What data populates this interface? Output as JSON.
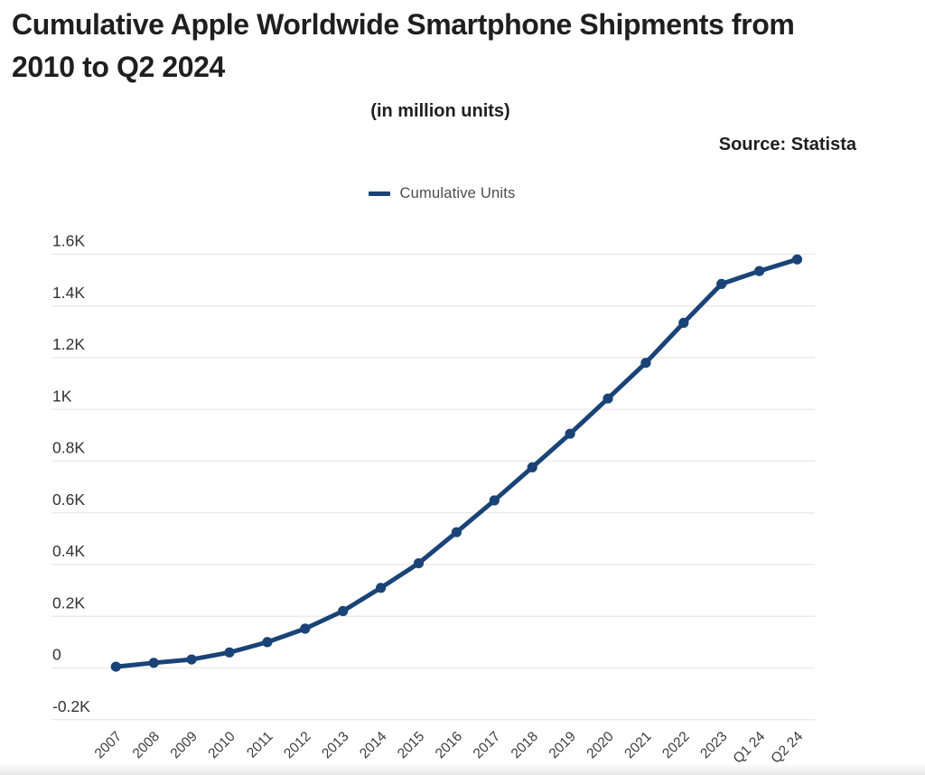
{
  "header": {
    "title_lines": [
      "Cumulative Apple Worldwide Smartphone Shipments from",
      "2010 to Q2 2024"
    ],
    "subtitle": "(in million units)",
    "source": "Source: Statista"
  },
  "legend": {
    "items": [
      {
        "label": "Cumulative Units",
        "color": "#1a4377"
      }
    ]
  },
  "chart_data": {
    "type": "line",
    "title": "Cumulative Apple Worldwide Smartphone Shipments from 2010 to Q2 2024",
    "subtitle": "(in million units)",
    "source": "Source: Statista",
    "units": "million units",
    "legend_entries": [
      "Cumulative Units"
    ],
    "legend_position": "top-center",
    "grid": "horizontal-only",
    "categories": [
      "2007",
      "2008",
      "2009",
      "2010",
      "2011",
      "2012",
      "2013",
      "2014",
      "2015",
      "2016",
      "2017",
      "2018",
      "2019",
      "2020",
      "2021",
      "2022",
      "2023",
      "Q1 24",
      "Q2 24"
    ],
    "series": [
      {
        "name": "Cumulative Units",
        "values": [
          5,
          20,
          33,
          60,
          100,
          152,
          220,
          310,
          405,
          525,
          648,
          776,
          906,
          1042,
          1180,
          1335,
          1485,
          1535,
          1580
        ]
      }
    ],
    "y_ticks": [
      {
        "label": "1.6K",
        "value": 1600
      },
      {
        "label": "1.4K",
        "value": 1400
      },
      {
        "label": "1.2K",
        "value": 1200
      },
      {
        "label": "1K",
        "value": 1000
      },
      {
        "label": "0.8K",
        "value": 800
      },
      {
        "label": "0.6K",
        "value": 600
      },
      {
        "label": "0.4K",
        "value": 400
      },
      {
        "label": "0.2K",
        "value": 200
      },
      {
        "label": "0",
        "value": 0
      },
      {
        "label": "-0.2K",
        "value": -200
      }
    ],
    "ylim": [
      -200,
      1600
    ],
    "colors": {
      "line": "#1a4377",
      "point": "#1a4377",
      "grid": "#e8e8e8",
      "y_tick_text": "#323232",
      "x_tick_text": "#3c3c3c"
    }
  }
}
